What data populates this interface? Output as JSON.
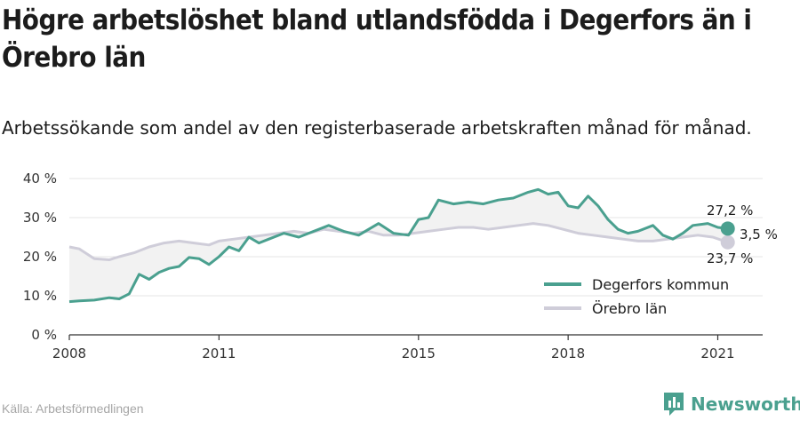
{
  "title": "Högre arbetslöshet bland utlandsfödda i Degerfors än i Örebro län",
  "subtitle": "Arbetssökande som andel av den registerbaserade arbetskraften månad för månad.",
  "source": "Källa: Arbetsförmedlingen",
  "brand": "Newsworthy",
  "colors": {
    "degerfors": "#4aa08f",
    "orebro": "#cfcdd9",
    "gap_fill": "#f2f2f2",
    "brand": "#4aa08f"
  },
  "chart_data": {
    "type": "line",
    "title": "",
    "xlabel": "",
    "ylabel": "",
    "xlim": [
      2008.0,
      2021.9
    ],
    "ylim": [
      0,
      40
    ],
    "y_ticks": [
      "0 %",
      "10 %",
      "20 %",
      "30 %",
      "40 %"
    ],
    "y_tick_values": [
      0,
      10,
      20,
      30,
      40
    ],
    "x_ticks": [
      "2008",
      "2011",
      "2015",
      "2018",
      "2021"
    ],
    "x_tick_values": [
      2008,
      2011,
      2015,
      2018,
      2021
    ],
    "grid": true,
    "legend_position": "bottom-right",
    "series": [
      {
        "name": "Degerfors kommun",
        "x": [
          2008.0,
          2008.2,
          2008.5,
          2008.8,
          2009.0,
          2009.2,
          2009.4,
          2009.6,
          2009.8,
          2010.0,
          2010.2,
          2010.4,
          2010.6,
          2010.8,
          2011.0,
          2011.2,
          2011.4,
          2011.6,
          2011.8,
          2012.0,
          2012.3,
          2012.6,
          2012.9,
          2013.2,
          2013.5,
          2013.8,
          2014.0,
          2014.2,
          2014.5,
          2014.8,
          2015.0,
          2015.2,
          2015.4,
          2015.7,
          2016.0,
          2016.3,
          2016.6,
          2016.9,
          2017.2,
          2017.4,
          2017.6,
          2017.8,
          2018.0,
          2018.2,
          2018.4,
          2018.6,
          2018.8,
          2019.0,
          2019.2,
          2019.4,
          2019.7,
          2019.9,
          2020.1,
          2020.3,
          2020.5,
          2020.8,
          2021.0,
          2021.2
        ],
        "values": [
          8.5,
          8.7,
          8.9,
          9.5,
          9.2,
          10.5,
          15.5,
          14.2,
          16.0,
          17.0,
          17.5,
          19.8,
          19.5,
          18.0,
          20.0,
          22.5,
          21.5,
          25.0,
          23.5,
          24.5,
          26.0,
          25.0,
          26.5,
          28.0,
          26.5,
          25.5,
          27.0,
          28.5,
          26.0,
          25.5,
          29.5,
          30.0,
          34.5,
          33.5,
          34.0,
          33.5,
          34.5,
          35.0,
          36.5,
          37.2,
          36.0,
          36.5,
          33.0,
          32.5,
          35.5,
          33.0,
          29.5,
          27.0,
          26.0,
          26.5,
          28.0,
          25.5,
          24.5,
          26.0,
          28.0,
          28.5,
          27.5,
          27.2
        ]
      },
      {
        "name": "Örebro län",
        "x": [
          2008.0,
          2008.2,
          2008.5,
          2008.8,
          2009.0,
          2009.3,
          2009.6,
          2009.9,
          2010.2,
          2010.5,
          2010.8,
          2011.0,
          2011.3,
          2011.6,
          2011.9,
          2012.2,
          2012.5,
          2012.8,
          2013.1,
          2013.4,
          2013.7,
          2014.0,
          2014.3,
          2014.6,
          2014.9,
          2015.2,
          2015.5,
          2015.8,
          2016.1,
          2016.4,
          2016.7,
          2017.0,
          2017.3,
          2017.6,
          2017.9,
          2018.2,
          2018.5,
          2018.8,
          2019.1,
          2019.4,
          2019.7,
          2020.0,
          2020.3,
          2020.6,
          2020.9,
          2021.2
        ],
        "values": [
          22.5,
          22.0,
          19.5,
          19.2,
          20.0,
          21.0,
          22.5,
          23.5,
          24.0,
          23.5,
          23.0,
          24.0,
          24.5,
          25.0,
          25.5,
          26.0,
          26.5,
          26.0,
          27.0,
          26.5,
          26.0,
          26.5,
          25.5,
          25.5,
          26.0,
          26.5,
          27.0,
          27.5,
          27.5,
          27.0,
          27.5,
          28.0,
          28.5,
          28.0,
          27.0,
          26.0,
          25.5,
          25.0,
          24.5,
          24.0,
          24.0,
          24.5,
          25.0,
          25.5,
          25.0,
          23.7
        ]
      }
    ],
    "annotations": {
      "end_degerfors": "27,2 %",
      "gap": "3,5 %",
      "end_orebro": "23,7 %"
    }
  }
}
